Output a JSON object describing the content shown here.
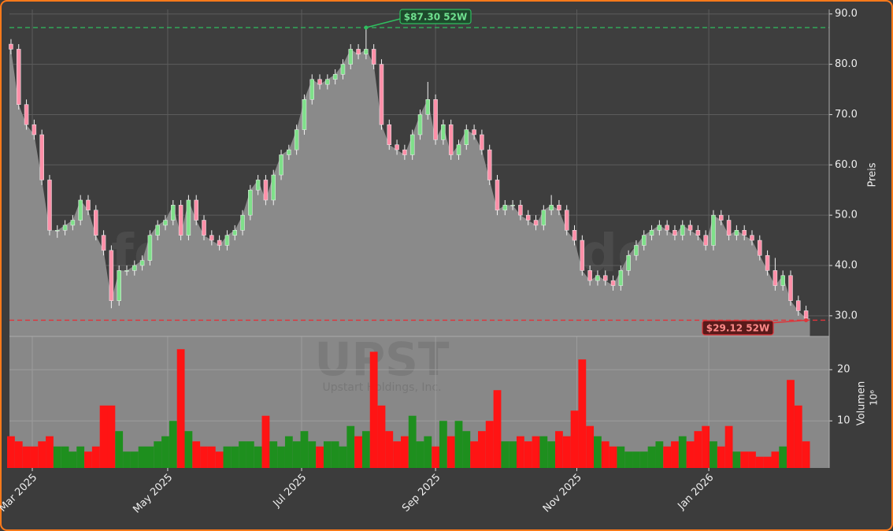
{
  "chart_data": [
    {
      "type": "candlestick",
      "watermark": "forexsignale.trade",
      "ylabel": "Preis",
      "xlim": [
        -0.2,
        106
      ],
      "ylim": [
        25.9,
        90.9
      ],
      "yticks": [
        {
          "value": 30,
          "label": "30.0"
        },
        {
          "value": 40,
          "label": "40.0"
        },
        {
          "value": 50,
          "label": "50.0"
        },
        {
          "value": 60,
          "label": "60.0"
        },
        {
          "value": 70,
          "label": "70.0"
        },
        {
          "value": 80,
          "label": "80.0"
        },
        {
          "value": 90,
          "label": "90.0"
        }
      ],
      "grid": true,
      "up_color": "#7fe08a",
      "down_color": "#ff8fa8",
      "area_color": "#8a8a8a",
      "open": [
        84,
        83,
        72,
        68,
        66,
        57,
        47,
        47,
        48,
        49,
        53,
        51,
        46,
        43,
        33,
        39,
        39,
        40,
        41,
        46,
        48,
        49,
        52,
        46,
        53,
        49,
        46,
        45,
        44,
        46,
        47,
        50,
        55,
        57,
        53,
        58,
        62,
        63,
        67,
        73,
        77,
        76,
        77,
        78,
        80,
        83,
        82,
        83,
        80,
        68,
        64,
        63,
        62,
        66,
        70,
        73,
        65,
        68,
        62,
        64,
        67,
        66,
        63,
        57,
        51,
        52,
        52,
        50,
        49,
        48,
        51,
        52,
        51,
        47,
        45,
        39,
        37,
        38,
        37,
        36,
        39,
        42,
        44,
        46,
        47,
        48,
        47,
        46,
        48,
        47,
        46,
        44,
        50,
        49,
        46,
        47,
        46,
        45,
        42,
        39,
        36,
        38,
        33,
        31
      ],
      "high": [
        85,
        84,
        73,
        69,
        67,
        58,
        48,
        49,
        50,
        54,
        54,
        52,
        47,
        44,
        40,
        40,
        41,
        42,
        47,
        49,
        50,
        53,
        53,
        54,
        54,
        50,
        47,
        46,
        47,
        48,
        51,
        56,
        58,
        58,
        59,
        63,
        64,
        68,
        74,
        78,
        78,
        78,
        79,
        81,
        84,
        84,
        87.3,
        84,
        81,
        69,
        65,
        64,
        67,
        71,
        76.5,
        74,
        69,
        69,
        65,
        68,
        68,
        67,
        64,
        58,
        53,
        53,
        53,
        51,
        50,
        52,
        54,
        53,
        52,
        48,
        46,
        40,
        39,
        39,
        38,
        40,
        43,
        45,
        47,
        48,
        49,
        49,
        48,
        49,
        49,
        48,
        47,
        51,
        51,
        50,
        48,
        48,
        47,
        46,
        43,
        41.5,
        39,
        39,
        34,
        32
      ],
      "low": [
        82,
        71,
        67,
        65,
        56,
        46,
        45.5,
        46,
        47,
        48,
        50,
        45,
        42,
        31.5,
        32,
        38,
        38,
        39,
        40,
        45,
        47,
        48,
        45,
        45,
        48,
        45,
        44,
        43,
        43,
        45,
        46,
        49,
        54,
        52,
        52,
        57,
        61,
        62,
        66,
        72,
        75,
        75,
        76,
        77,
        79,
        81,
        81,
        79,
        67,
        63,
        62,
        61,
        61,
        65,
        69,
        64,
        64,
        61,
        61,
        63,
        65,
        62,
        56,
        50,
        50,
        51,
        49,
        48,
        47,
        47,
        50,
        50,
        46,
        44,
        38,
        36,
        36,
        36,
        35,
        35,
        38,
        41,
        43,
        45,
        46,
        46,
        45,
        45,
        46,
        45,
        43,
        43,
        48,
        45,
        45,
        45,
        44,
        41,
        38,
        35,
        35,
        32,
        30,
        29.12
      ],
      "close": [
        83,
        72,
        68,
        66,
        57,
        47,
        47,
        48,
        49,
        53,
        51,
        46,
        43,
        33,
        39,
        39,
        40,
        41,
        46,
        48,
        49,
        52,
        46,
        53,
        49,
        46,
        45,
        44,
        46,
        47,
        50,
        55,
        57,
        53,
        58,
        62,
        63,
        67,
        73,
        77,
        76,
        77,
        78,
        80,
        83,
        82,
        83,
        80,
        68,
        64,
        63,
        62,
        66,
        70,
        73,
        65,
        68,
        62,
        64,
        67,
        66,
        63,
        57,
        51,
        52,
        52,
        50,
        49,
        48,
        51,
        52,
        51,
        47,
        45,
        39,
        37,
        38,
        37,
        36,
        39,
        42,
        44,
        46,
        47,
        48,
        47,
        46,
        48,
        47,
        46,
        44,
        50,
        49,
        46,
        47,
        46,
        45,
        42,
        39,
        36,
        38,
        33,
        31,
        29.5
      ],
      "annotations": [
        {
          "value": 87.3,
          "label": "$87.30 52W",
          "color": "#2fbf5f"
        },
        {
          "value": 29.12,
          "label": "$29.12 52W",
          "color": "#e0343a"
        }
      ]
    },
    {
      "type": "bar",
      "title": "UPST",
      "subtitle": "Upstart Holdings, Inc.",
      "ylabel": "Volumen",
      "multiplier": "10⁶",
      "xlim": [
        -0.2,
        106
      ],
      "ylim": [
        0.8,
        26.5
      ],
      "yticks": [
        10,
        20
      ],
      "xticks": [
        {
          "value": 2.76,
          "label": "Mar 2025"
        },
        {
          "value": 20.3,
          "label": "May 2025"
        },
        {
          "value": 37.65,
          "label": "Jul 2025"
        },
        {
          "value": 55,
          "label": "Sep 2025"
        },
        {
          "value": 73.3,
          "label": "Nov 2025"
        },
        {
          "value": 90.4,
          "label": "Jan 2026"
        }
      ],
      "grid": true,
      "up_color": "#1e8f1e",
      "down_color": "#ff1414",
      "values": [
        7,
        6,
        5,
        5,
        6,
        7,
        5,
        5,
        4,
        5,
        4,
        5,
        13,
        13,
        8,
        4,
        4,
        5,
        5,
        6,
        7,
        10,
        24,
        8,
        6,
        5,
        5,
        4,
        5,
        5,
        6,
        6,
        5,
        11,
        6,
        5,
        7,
        6,
        8,
        6,
        5,
        6,
        6,
        5,
        9,
        7,
        8,
        23.5,
        13,
        8,
        6,
        7,
        11,
        6,
        7,
        5,
        10,
        7,
        10,
        8,
        6,
        8,
        10,
        16,
        6,
        6,
        7,
        6,
        7,
        7,
        6,
        8,
        7,
        12,
        22,
        9,
        7,
        6,
        5,
        5,
        4,
        4,
        4,
        5,
        6,
        5,
        6,
        7,
        6,
        8,
        9,
        6,
        5,
        9,
        4,
        4,
        4,
        3,
        3,
        4,
        5,
        18,
        13,
        6
      ]
    }
  ]
}
